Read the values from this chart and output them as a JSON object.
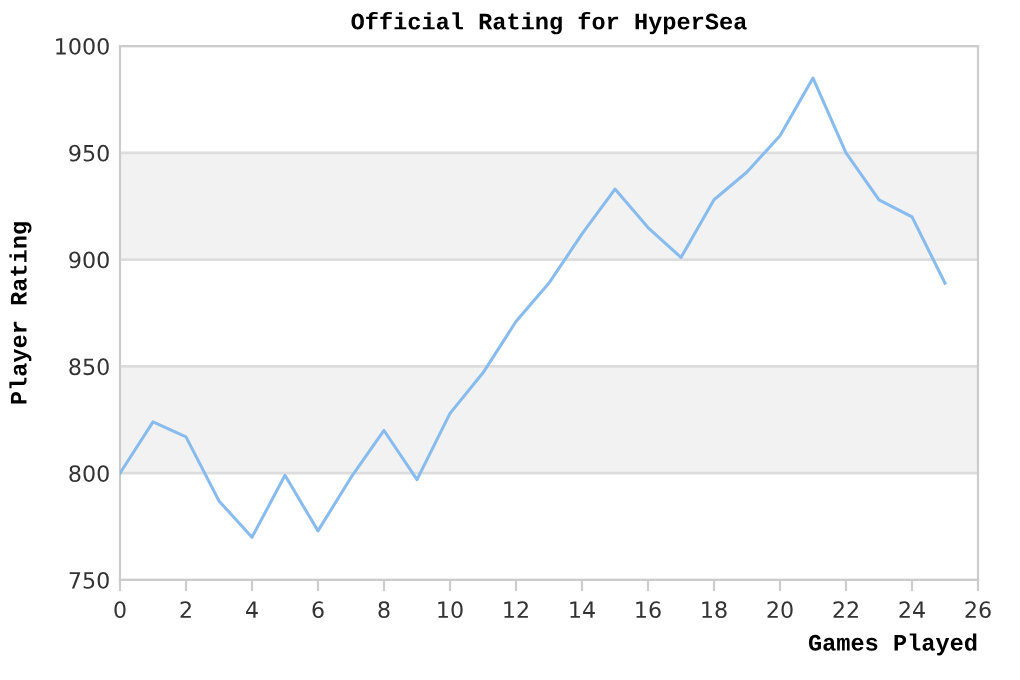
{
  "chart_data": {
    "type": "line",
    "title": "Official Rating for HyperSea",
    "xlabel": "Games Played",
    "ylabel": "Player Rating",
    "x": [
      0,
      1,
      2,
      3,
      4,
      5,
      6,
      7,
      8,
      9,
      10,
      11,
      12,
      13,
      14,
      15,
      16,
      17,
      18,
      19,
      20,
      21,
      22,
      23,
      24,
      25
    ],
    "series": [
      {
        "color": "#88bbee",
        "values": [
          800,
          824,
          817,
          787,
          770,
          799,
          773,
          798,
          820,
          797,
          828,
          847,
          871,
          889,
          912,
          933,
          915,
          901,
          928,
          941,
          958,
          985,
          950,
          928,
          920,
          889
        ]
      }
    ],
    "xlim": [
      0,
      26
    ],
    "xticks": [
      0,
      2,
      4,
      6,
      8,
      10,
      12,
      14,
      16,
      18,
      20,
      22,
      24,
      26
    ],
    "ylim": [
      750,
      1000
    ],
    "yticks": [
      750,
      800,
      850,
      900,
      950,
      1000
    ],
    "bands": [
      {
        "axis": "y",
        "from": 800,
        "to": 850,
        "color": "#f2f2f2"
      },
      {
        "axis": "y",
        "from": 900,
        "to": 950,
        "color": "#f2f2f2"
      }
    ],
    "grid": "y",
    "legend": false,
    "marker": "none",
    "line_style": "solid"
  }
}
